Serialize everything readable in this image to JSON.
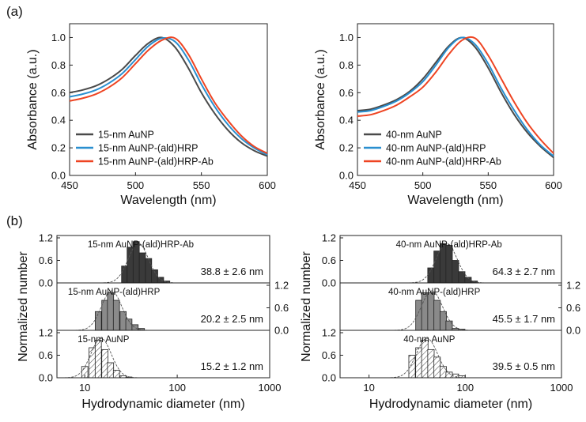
{
  "panel_labels": {
    "a": "(a)",
    "b": "(b)"
  },
  "chart_data": [
    {
      "type": "line",
      "id": "abs-15",
      "xlabel": "Wavelength (nm)",
      "ylabel": "Absorbance (a.u.)",
      "xlim": [
        450,
        600
      ],
      "ylim": [
        0,
        1.1
      ],
      "xticks": [
        "450",
        "500",
        "550",
        "600"
      ],
      "yticks": [
        "0.0",
        "0.2",
        "0.4",
        "0.6",
        "0.8",
        "1.0"
      ],
      "legend_position": "bottom-left",
      "x": [
        450,
        460,
        470,
        480,
        490,
        500,
        510,
        520,
        530,
        540,
        550,
        560,
        570,
        580,
        590,
        600
      ],
      "series": [
        {
          "name": "15-nm AuNP",
          "color": "#4a4a4a",
          "values": [
            0.6,
            0.62,
            0.65,
            0.7,
            0.77,
            0.87,
            0.96,
            1.0,
            0.93,
            0.78,
            0.6,
            0.45,
            0.33,
            0.24,
            0.18,
            0.14
          ]
        },
        {
          "name": "15-nm AuNP-(ald)HRP",
          "color": "#2a8fd0",
          "values": [
            0.57,
            0.59,
            0.62,
            0.67,
            0.74,
            0.84,
            0.94,
            0.995,
            0.97,
            0.84,
            0.66,
            0.5,
            0.37,
            0.27,
            0.2,
            0.15
          ]
        },
        {
          "name": "15-nm AuNP-(ald)HRP-Ab",
          "color": "#ee4422",
          "values": [
            0.54,
            0.56,
            0.59,
            0.64,
            0.71,
            0.81,
            0.91,
            0.98,
            0.995,
            0.88,
            0.7,
            0.53,
            0.4,
            0.29,
            0.21,
            0.16
          ]
        }
      ]
    },
    {
      "type": "line",
      "id": "abs-40",
      "xlabel": "Wavelength (nm)",
      "ylabel": "Absorbance (a.u.)",
      "xlim": [
        450,
        600
      ],
      "ylim": [
        0,
        1.1
      ],
      "xticks": [
        "450",
        "500",
        "550",
        "600"
      ],
      "yticks": [
        "0.0",
        "0.2",
        "0.4",
        "0.6",
        "0.8",
        "1.0"
      ],
      "legend_position": "bottom-left",
      "x": [
        450,
        460,
        470,
        480,
        490,
        500,
        510,
        520,
        530,
        540,
        550,
        560,
        570,
        580,
        590,
        600
      ],
      "series": [
        {
          "name": "40-nm AuNP",
          "color": "#4a4a4a",
          "values": [
            0.47,
            0.48,
            0.51,
            0.55,
            0.61,
            0.7,
            0.82,
            0.94,
            1.0,
            0.93,
            0.78,
            0.6,
            0.44,
            0.31,
            0.21,
            0.13
          ]
        },
        {
          "name": "40-nm AuNP-(ald)HRP",
          "color": "#2a8fd0",
          "values": [
            0.46,
            0.47,
            0.5,
            0.54,
            0.6,
            0.68,
            0.8,
            0.93,
            1.0,
            0.95,
            0.81,
            0.63,
            0.47,
            0.33,
            0.22,
            0.14
          ]
        },
        {
          "name": "40-nm AuNP-(ald)HRP-Ab",
          "color": "#ee4422",
          "values": [
            0.43,
            0.44,
            0.47,
            0.51,
            0.57,
            0.64,
            0.75,
            0.88,
            0.98,
            0.995,
            0.87,
            0.7,
            0.53,
            0.38,
            0.26,
            0.16
          ]
        }
      ]
    },
    {
      "type": "bar",
      "id": "dls-15",
      "xscale": "log",
      "xlabel": "Hydrodynamic diameter (nm)",
      "ylabel": "Normalized number",
      "xlim": [
        5,
        1000
      ],
      "ylim": [
        0,
        1.2
      ],
      "xticks": [
        "10",
        "100",
        "1000"
      ],
      "yticks": [
        "0.0",
        "0.6",
        "1.2"
      ],
      "subplots": [
        {
          "name": "15-nm AuNP-(ald)HRP-Ab",
          "result": "38.8 ± 2.6 nm",
          "fill": "#3a3a3a",
          "fit_center_nm": 38,
          "bin_centers": [
            27,
            31,
            36,
            42,
            49,
            57,
            66,
            77
          ],
          "values": [
            0.45,
            0.95,
            1.1,
            0.8,
            0.65,
            0.35,
            0.15,
            0.05
          ]
        },
        {
          "name": "15-nm AuNP-(ald)HRP",
          "result": "20.2 ± 2.5 nm",
          "fill": "#8a8a8a",
          "fit_center_nm": 19.5,
          "bin_centers": [
            14,
            16.5,
            19,
            22,
            26,
            30,
            35,
            41
          ],
          "values": [
            0.5,
            0.8,
            1.0,
            0.8,
            0.5,
            0.3,
            0.15,
            0.05
          ]
        },
        {
          "name": "15-nm AuNP",
          "result": "15.2 ± 1.2 nm",
          "fill": "hatch",
          "fit_center_nm": 15,
          "bin_centers": [
            10,
            12,
            14,
            16.5,
            19,
            22,
            26,
            30
          ],
          "values": [
            0.3,
            0.8,
            1.0,
            0.75,
            0.4,
            0.2,
            0.05,
            0.02
          ]
        }
      ]
    },
    {
      "type": "bar",
      "id": "dls-40",
      "xscale": "log",
      "xlabel": "Hydrodynamic diameter (nm)",
      "ylabel": "Normalized number",
      "xlim": [
        5,
        1000
      ],
      "ylim": [
        0,
        1.2
      ],
      "xticks": [
        "10",
        "100",
        "1000"
      ],
      "yticks": [
        "0.0",
        "0.6",
        "1.2"
      ],
      "subplots": [
        {
          "name": "40-nm AuNP-(ald)HRP-Ab",
          "result": "64.3 ± 2.7 nm",
          "fill": "#3a3a3a",
          "fit_center_nm": 64,
          "bin_centers": [
            44,
            51,
            59,
            68,
            79,
            92,
            107,
            124
          ],
          "values": [
            0.4,
            0.85,
            1.05,
            1.0,
            0.6,
            0.3,
            0.15,
            0.05
          ]
        },
        {
          "name": "40-nm AuNP-(ald)HRP",
          "result": "45.5 ± 1.7 nm",
          "fill": "#8a8a8a",
          "fit_center_nm": 45,
          "bin_centers": [
            33,
            38,
            44,
            51,
            59,
            68,
            79,
            92
          ],
          "values": [
            0.8,
            1.0,
            1.0,
            0.8,
            0.5,
            0.25,
            0.05,
            0.03
          ]
        },
        {
          "name": "40-nm AuNP",
          "result": "39.5 ± 0.5 nm",
          "fill": "hatch",
          "fit_center_nm": 40,
          "bin_centers": [
            28,
            33,
            38,
            44,
            51,
            59,
            68,
            79,
            92
          ],
          "values": [
            0.6,
            0.8,
            1.0,
            0.75,
            0.55,
            0.3,
            0.15,
            0.1,
            0.05
          ]
        }
      ]
    }
  ]
}
